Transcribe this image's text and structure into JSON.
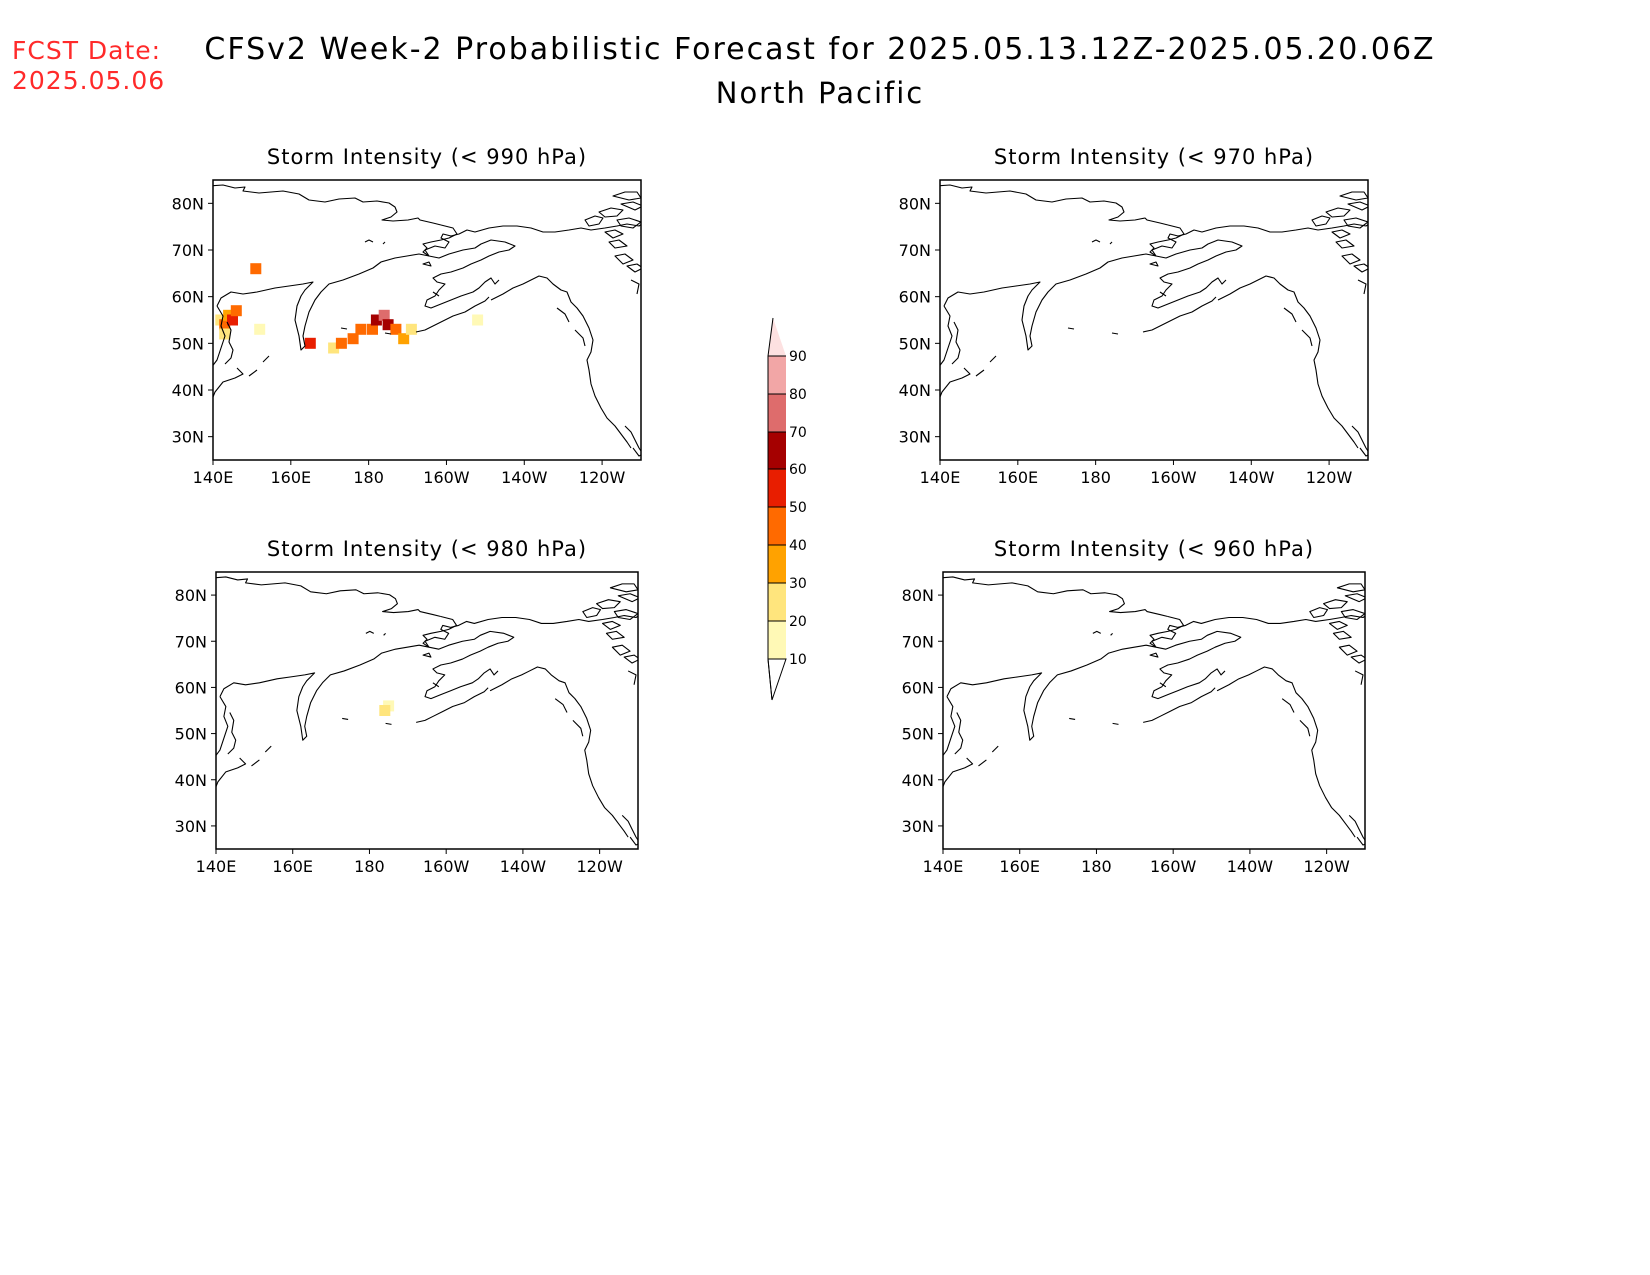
{
  "header": {
    "fcst_label": "FCST Date:",
    "fcst_date": "2025.05.06",
    "title": "CFSv2 Week-2 Probabilistic Forecast for 2025.05.13.12Z-2025.05.20.06Z",
    "subtitle": "North Pacific"
  },
  "panels": [
    {
      "id": "p990",
      "title": "Storm Intensity (< 990 hPa)"
    },
    {
      "id": "p970",
      "title": "Storm Intensity (< 970 hPa)"
    },
    {
      "id": "p980",
      "title": "Storm Intensity (< 980 hPa)"
    },
    {
      "id": "p960",
      "title": "Storm Intensity (< 960 hPa)"
    }
  ],
  "axes": {
    "lat_ticks": [
      "80N",
      "70N",
      "60N",
      "50N",
      "40N",
      "30N"
    ],
    "lon_ticks": [
      "140E",
      "160E",
      "180",
      "160W",
      "140W",
      "120W"
    ],
    "lat_range": [
      25,
      85
    ],
    "lon_range_east": [
      140,
      250
    ]
  },
  "colorbar": {
    "tick_labels": [
      "10",
      "20",
      "30",
      "40",
      "50",
      "60",
      "70",
      "80",
      "90"
    ],
    "colors": [
      "#fff9b6",
      "#ffe57d",
      "#ffa200",
      "#ff6a00",
      "#e81e00",
      "#a50000",
      "#de6c6c",
      "#f2a6a6",
      "#fde1e1"
    ]
  },
  "chart_data": {
    "type": "heatmap",
    "units": "probability (%)",
    "p990": [
      {
        "lon": 142,
        "lat": 55,
        "value": 20
      },
      {
        "lon": 143,
        "lat": 54,
        "value": 40
      },
      {
        "lon": 144,
        "lat": 56,
        "value": 30
      },
      {
        "lon": 145,
        "lat": 55,
        "value": 50
      },
      {
        "lon": 146,
        "lat": 57,
        "value": 40
      },
      {
        "lon": 143,
        "lat": 52,
        "value": 20
      },
      {
        "lon": 151,
        "lat": 66,
        "value": 40
      },
      {
        "lon": 152,
        "lat": 53,
        "value": 10
      },
      {
        "lon": 165,
        "lat": 50,
        "value": 50
      },
      {
        "lon": 171,
        "lat": 49,
        "value": 20
      },
      {
        "lon": 173,
        "lat": 50,
        "value": 40
      },
      {
        "lon": 176,
        "lat": 51,
        "value": 40
      },
      {
        "lon": 178,
        "lat": 53,
        "value": 40
      },
      {
        "lon": 181,
        "lat": 53,
        "value": 40
      },
      {
        "lon": 182,
        "lat": 55,
        "value": 60
      },
      {
        "lon": 184,
        "lat": 56,
        "value": 70
      },
      {
        "lon": 185,
        "lat": 54,
        "value": 60
      },
      {
        "lon": 187,
        "lat": 53,
        "value": 40
      },
      {
        "lon": 189,
        "lat": 51,
        "value": 30
      },
      {
        "lon": 191,
        "lat": 53,
        "value": 20
      },
      {
        "lon": 208,
        "lat": 55,
        "value": 10
      }
    ],
    "p980": [
      {
        "lon": 185,
        "lat": 56,
        "value": 10
      },
      {
        "lon": 184,
        "lat": 55,
        "value": 20
      }
    ],
    "p970": [],
    "p960": []
  }
}
